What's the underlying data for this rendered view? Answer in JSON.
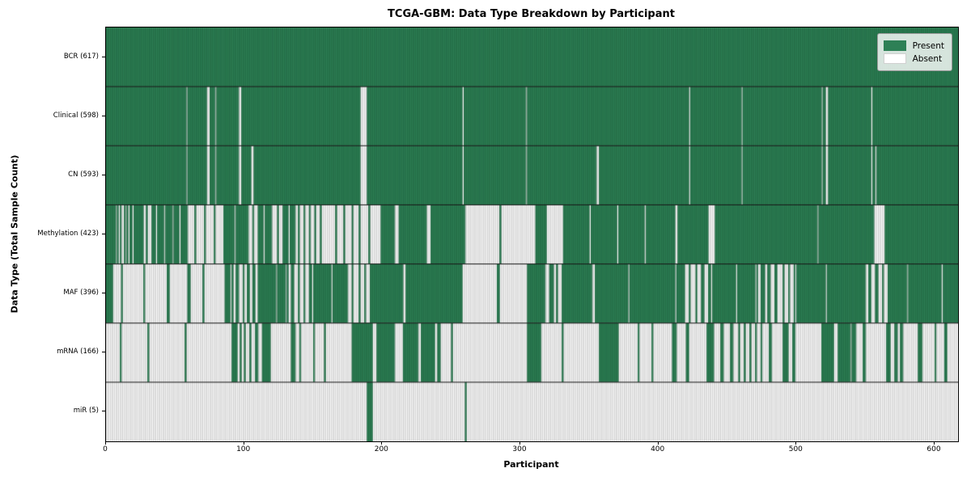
{
  "title": "TCGA-GBM: Data Type Breakdown by Participant",
  "xlabel": "Participant",
  "ylabel": "Data Type (Total Sample Count)",
  "legend": {
    "present_label": "Present",
    "absent_label": "Absent"
  },
  "colors": {
    "present": "#2e8056",
    "present_edge": "#1c5c3a",
    "absent": "#ffffff",
    "absent_edge": "#a8a8a8",
    "row_divider": "#141414",
    "plot_border": "#000000"
  },
  "chart_data": {
    "type": "heatmap",
    "title": "TCGA-GBM: Data Type Breakdown by Participant",
    "xlabel": "Participant",
    "ylabel": "Data Type (Total Sample Count)",
    "x_range": [
      0,
      617
    ],
    "x_tick_values": [
      0,
      100,
      200,
      300,
      400,
      500,
      600
    ],
    "grid": false,
    "legend_position": "upper right",
    "legend": [
      {
        "label": "Present",
        "color": "#2e8056"
      },
      {
        "label": "Absent",
        "color": "#ffffff"
      }
    ],
    "value_meaning": "1 = data type present for participant, 0 = absent; segments are [start,end) participant index ranges",
    "rows": [
      {
        "label": "BCR (617)",
        "data_type": "BCR",
        "present_count": 617,
        "encoding": "absent_segments",
        "segments": []
      },
      {
        "label": "Clinical (598)",
        "data_type": "Clinical",
        "present_count": 598,
        "encoding": "absent_segments",
        "segments": [
          [
            58,
            59
          ],
          [
            73,
            75
          ],
          [
            79,
            80
          ],
          [
            96,
            98
          ],
          [
            184,
            189
          ],
          [
            258,
            259
          ],
          [
            304,
            305
          ],
          [
            422,
            423
          ],
          [
            460,
            461
          ],
          [
            518,
            519
          ],
          [
            521,
            523
          ],
          [
            554,
            555
          ]
        ]
      },
      {
        "label": "CN (593)",
        "data_type": "CN",
        "present_count": 593,
        "encoding": "absent_segments",
        "segments": [
          [
            58,
            59
          ],
          [
            73,
            75
          ],
          [
            79,
            80
          ],
          [
            96,
            98
          ],
          [
            105,
            107
          ],
          [
            184,
            189
          ],
          [
            258,
            259
          ],
          [
            304,
            305
          ],
          [
            355,
            357
          ],
          [
            422,
            423
          ],
          [
            460,
            461
          ],
          [
            518,
            519
          ],
          [
            521,
            523
          ],
          [
            554,
            555
          ],
          [
            557,
            558
          ]
        ]
      },
      {
        "label": "Methylation (423)",
        "data_type": "Methylation",
        "present_count": 423,
        "encoding": "present_segments",
        "segments": [
          [
            0,
            7
          ],
          [
            8,
            9
          ],
          [
            10,
            11
          ],
          [
            13,
            14
          ],
          [
            15,
            16
          ],
          [
            17,
            19
          ],
          [
            20,
            27
          ],
          [
            29,
            30
          ],
          [
            33,
            36
          ],
          [
            37,
            42
          ],
          [
            43,
            48
          ],
          [
            49,
            53
          ],
          [
            54,
            59
          ],
          [
            64,
            65
          ],
          [
            71,
            72
          ],
          [
            78,
            79
          ],
          [
            85,
            93
          ],
          [
            94,
            103
          ],
          [
            106,
            107
          ],
          [
            110,
            114
          ],
          [
            115,
            120
          ],
          [
            124,
            125
          ],
          [
            128,
            132
          ],
          [
            133,
            137
          ],
          [
            139,
            140
          ],
          [
            143,
            144
          ],
          [
            147,
            148
          ],
          [
            151,
            152
          ],
          [
            155,
            156
          ],
          [
            166,
            167
          ],
          [
            172,
            173
          ],
          [
            178,
            179
          ],
          [
            183,
            184
          ],
          [
            190,
            191
          ],
          [
            199,
            209
          ],
          [
            212,
            232
          ],
          [
            235,
            260
          ],
          [
            285,
            286
          ],
          [
            311,
            319
          ],
          [
            331,
            350
          ],
          [
            351,
            370
          ],
          [
            371,
            390
          ],
          [
            391,
            412
          ],
          [
            414,
            436
          ],
          [
            441,
            515
          ],
          [
            516,
            556
          ],
          [
            564,
            617
          ]
        ]
      },
      {
        "label": "MAF (396)",
        "data_type": "MAF",
        "present_count": 396,
        "encoding": "present_segments",
        "segments": [
          [
            0,
            5
          ],
          [
            11,
            12
          ],
          [
            27,
            28
          ],
          [
            44,
            46
          ],
          [
            59,
            61
          ],
          [
            70,
            71
          ],
          [
            86,
            90
          ],
          [
            91,
            92
          ],
          [
            94,
            96
          ],
          [
            99,
            100
          ],
          [
            102,
            104
          ],
          [
            106,
            108
          ],
          [
            110,
            123
          ],
          [
            124,
            130
          ],
          [
            131,
            132
          ],
          [
            134,
            136
          ],
          [
            139,
            140
          ],
          [
            143,
            144
          ],
          [
            147,
            149
          ],
          [
            150,
            163
          ],
          [
            164,
            175
          ],
          [
            178,
            179
          ],
          [
            183,
            184
          ],
          [
            187,
            188
          ],
          [
            191,
            215
          ],
          [
            217,
            258
          ],
          [
            283,
            285
          ],
          [
            305,
            318
          ],
          [
            321,
            324
          ],
          [
            326,
            327
          ],
          [
            330,
            352
          ],
          [
            354,
            378
          ],
          [
            379,
            412
          ],
          [
            413,
            419
          ],
          [
            422,
            423
          ],
          [
            427,
            428
          ],
          [
            431,
            433
          ],
          [
            436,
            438
          ],
          [
            439,
            456
          ],
          [
            457,
            470
          ],
          [
            471,
            472
          ],
          [
            474,
            477
          ],
          [
            479,
            481
          ],
          [
            484,
            486
          ],
          [
            490,
            491
          ],
          [
            494,
            495
          ],
          [
            498,
            499
          ],
          [
            500,
            521
          ],
          [
            522,
            550
          ],
          [
            552,
            554
          ],
          [
            557,
            559
          ],
          [
            562,
            563
          ],
          [
            566,
            580
          ],
          [
            581,
            605
          ],
          [
            606,
            617
          ]
        ]
      },
      {
        "label": "mRNA (166)",
        "data_type": "mRNA",
        "present_count": 166,
        "encoding": "present_segments",
        "segments": [
          [
            10,
            11
          ],
          [
            30,
            31
          ],
          [
            57,
            58
          ],
          [
            91,
            95
          ],
          [
            97,
            98
          ],
          [
            100,
            101
          ],
          [
            104,
            105
          ],
          [
            108,
            110
          ],
          [
            113,
            119
          ],
          [
            134,
            137
          ],
          [
            140,
            141
          ],
          [
            150,
            151
          ],
          [
            158,
            159
          ],
          [
            178,
            193
          ],
          [
            196,
            209
          ],
          [
            215,
            226
          ],
          [
            228,
            238
          ],
          [
            240,
            242
          ],
          [
            250,
            251
          ],
          [
            305,
            315
          ],
          [
            330,
            331
          ],
          [
            357,
            371
          ],
          [
            385,
            386
          ],
          [
            395,
            396
          ],
          [
            410,
            413
          ],
          [
            420,
            422
          ],
          [
            435,
            440
          ],
          [
            445,
            447
          ],
          [
            452,
            454
          ],
          [
            458,
            459
          ],
          [
            462,
            463
          ],
          [
            466,
            467
          ],
          [
            470,
            471
          ],
          [
            474,
            475
          ],
          [
            480,
            482
          ],
          [
            490,
            494
          ],
          [
            497,
            499
          ],
          [
            518,
            527
          ],
          [
            530,
            539
          ],
          [
            540,
            543
          ],
          [
            548,
            550
          ],
          [
            565,
            568
          ],
          [
            571,
            573
          ],
          [
            575,
            577
          ],
          [
            588,
            591
          ],
          [
            600,
            601
          ],
          [
            607,
            609
          ]
        ]
      },
      {
        "label": "miR (5)",
        "data_type": "miR",
        "present_count": 5,
        "encoding": "present_segments",
        "segments": [
          [
            189,
            193
          ],
          [
            260,
            261
          ]
        ]
      }
    ]
  }
}
